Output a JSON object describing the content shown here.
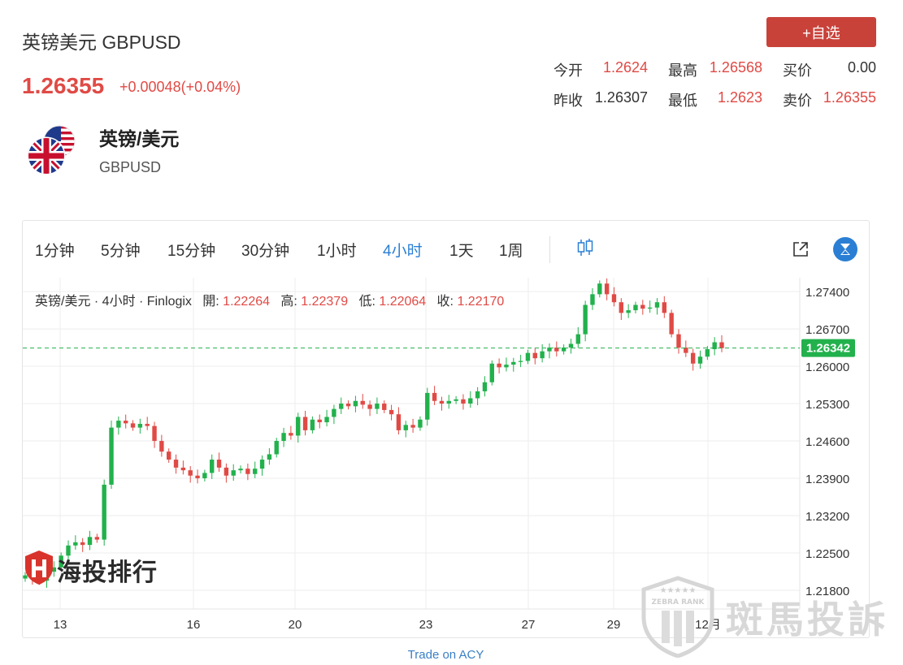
{
  "header": {
    "title": "英镑美元 GBPUSD",
    "price": "1.26355",
    "change": "+0.00048(+0.04%)",
    "watch_button": "+自选"
  },
  "quote": {
    "open_label": "今开",
    "open": "1.2624",
    "high_label": "最高",
    "high": "1.26568",
    "bid_label": "买价",
    "bid": "0.00",
    "prev_close_label": "昨收",
    "prev_close": "1.26307",
    "low_label": "最低",
    "low": "1.2623",
    "ask_label": "卖价",
    "ask": "1.26355"
  },
  "symbol": {
    "name": "英镑/美元",
    "code": "GBPUSD",
    "icon": "uk-us-flag-icon"
  },
  "timeframes": [
    "1分钟",
    "5分钟",
    "15分钟",
    "30分钟",
    "1小时",
    "4小时",
    "1天",
    "1周"
  ],
  "active_timeframe": "4小时",
  "toolbar_icons": [
    "candlestick-icon",
    "external-link-icon",
    "tradingview-logo-icon"
  ],
  "legend": {
    "prefix": "英镑/美元 · 4小时 · Finlogix",
    "open_label": "開:",
    "open": "1.22264",
    "high_label": "高:",
    "high": "1.22379",
    "low_label": "低:",
    "low": "1.22064",
    "close_label": "收:",
    "close": "1.22170"
  },
  "price_tag": "1.26342",
  "watermark": {
    "left_text": "海投排行",
    "right_text": "斑馬投訴",
    "badge_text": "ZEBRA RANK"
  },
  "footer_link": "Trade on ACY",
  "colors": {
    "up": "#22b14c",
    "down": "#e04a45",
    "accent": "#2a7fd4",
    "button": "#c9423a"
  },
  "chart_data": {
    "type": "candlestick",
    "y_ticks": [
      "1.27400",
      "1.26700",
      "1.26000",
      "1.25300",
      "1.24600",
      "1.23900",
      "1.23200",
      "1.22500",
      "1.21800"
    ],
    "x_ticks": [
      "13",
      "16",
      "20",
      "23",
      "27",
      "29",
      "12月"
    ],
    "ylim": [
      1.2145,
      1.2766
    ],
    "current_price": 1.26342,
    "grid": true,
    "closes": [
      1.2208,
      1.2202,
      1.2198,
      1.2215,
      1.2223,
      1.2245,
      1.2264,
      1.227,
      1.2265,
      1.228,
      1.2275,
      1.2378,
      1.2485,
      1.2498,
      1.2493,
      1.2485,
      1.2492,
      1.2488,
      1.246,
      1.244,
      1.2425,
      1.241,
      1.2405,
      1.2395,
      1.239,
      1.24,
      1.2425,
      1.241,
      1.2395,
      1.2405,
      1.2408,
      1.2398,
      1.2408,
      1.2425,
      1.2435,
      1.246,
      1.2475,
      1.247,
      1.2505,
      1.248,
      1.25,
      1.2495,
      1.2505,
      1.252,
      1.253,
      1.2525,
      1.2535,
      1.2528,
      1.252,
      1.253,
      1.2518,
      1.251,
      1.248,
      1.249,
      1.2485,
      1.25,
      1.255,
      1.2535,
      1.253,
      1.2535,
      1.2538,
      1.253,
      1.254,
      1.2553,
      1.257,
      1.2605,
      1.2598,
      1.2603,
      1.2608,
      1.261,
      1.2625,
      1.2615,
      1.2628,
      1.2635,
      1.2628,
      1.2635,
      1.2642,
      1.266,
      1.2715,
      1.2735,
      1.2755,
      1.2735,
      1.272,
      1.27,
      1.2705,
      1.2715,
      1.2708,
      1.271,
      1.272,
      1.27,
      1.266,
      1.2635,
      1.2625,
      1.2605,
      1.2618,
      1.2632,
      1.2645,
      1.2634
    ]
  }
}
